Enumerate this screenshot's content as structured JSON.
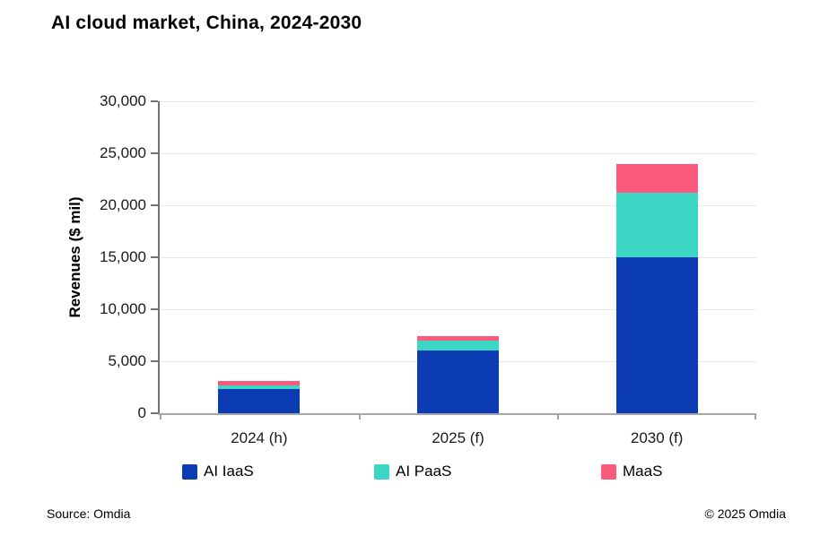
{
  "title": "AI cloud market, China, 2024-2030",
  "chart_data": {
    "type": "bar",
    "stacked": true,
    "title": "AI cloud market, China, 2024-2030",
    "categories": [
      "2024 (h)",
      "2025 (f)",
      "2030 (f)"
    ],
    "series": [
      {
        "name": "AI IaaS",
        "color": "#0b3cb4",
        "values": [
          2300,
          6000,
          15000
        ]
      },
      {
        "name": "AI PaaS",
        "color": "#3bd6c4",
        "values": [
          400,
          1000,
          6200
        ]
      },
      {
        "name": "MaaS",
        "color": "#fb5a7d",
        "values": [
          400,
          400,
          2800
        ]
      }
    ],
    "xlabel": "",
    "ylabel": "Revenues ($ mil)",
    "ylim": [
      0,
      30000
    ],
    "ytick_step": 5000,
    "ytick_labels": [
      "0",
      "5,000",
      "10,000",
      "15,000",
      "20,000",
      "25,000",
      "30,000"
    ],
    "grid": "horizontal",
    "legend_position": "bottom"
  },
  "legend": {
    "items": [
      {
        "label": "AI IaaS"
      },
      {
        "label": "AI PaaS"
      },
      {
        "label": "MaaS"
      }
    ]
  },
  "footer": {
    "source": "Source: Omdia",
    "copyright": "© 2025 Omdia"
  },
  "colors": {
    "background": "#ffffff",
    "title_text": "#000000",
    "axis_text": "#1a1a1a",
    "y_axis_line": "#737373",
    "x_axis_line": "#a6a6a6",
    "gridline": "#e8e8e8",
    "iaas": "#0b3cb4",
    "paas": "#3bd6c4",
    "maas": "#fb5a7d"
  }
}
